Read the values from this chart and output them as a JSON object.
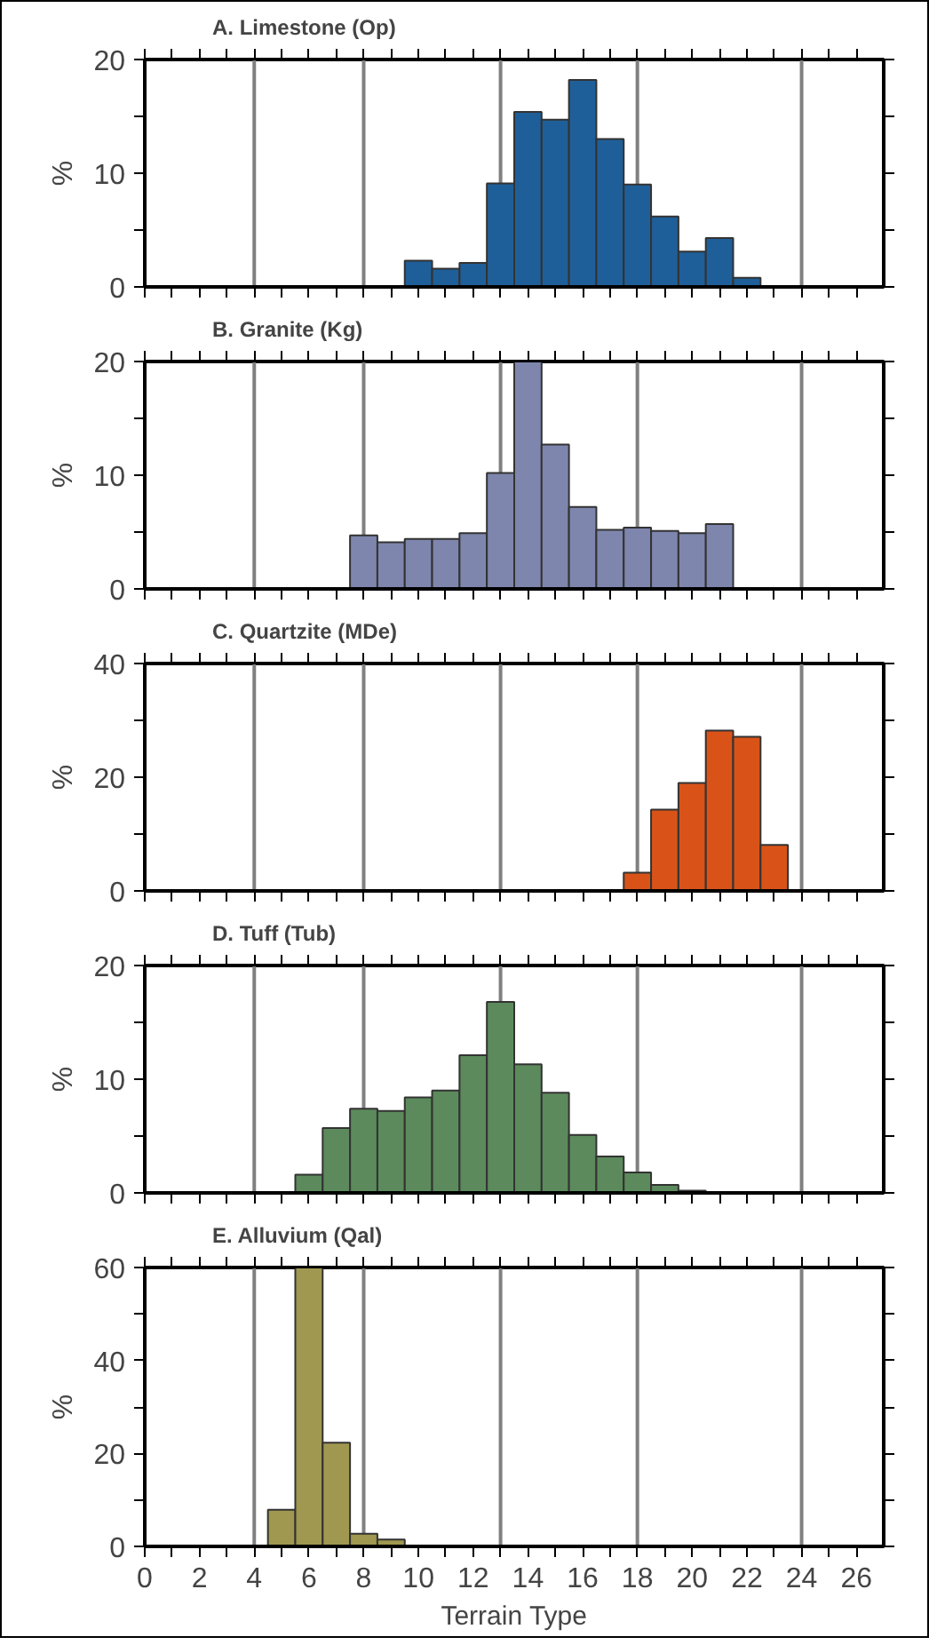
{
  "chart_data": [
    {
      "type": "histogram",
      "title": "A. Limestone (Op)",
      "ylabel": "%",
      "color": "#1f5f99",
      "bins": [
        9.5,
        10.5,
        11.5,
        12.5,
        13.5,
        14.5,
        15.5,
        16.5,
        17.5,
        18.5,
        19.5,
        20.5,
        21.5,
        22.5
      ],
      "values": [
        2.3,
        1.6,
        2.1,
        9.1,
        15.4,
        14.7,
        18.2,
        13.0,
        9.0,
        6.2,
        3.1,
        4.3,
        0.8
      ],
      "xlim": [
        0,
        27
      ],
      "ylim": [
        0,
        20
      ],
      "xticks": [
        0,
        {
          "value": 1,
          "label": null
        },
        2,
        {
          "value": 3,
          "label": null
        },
        4,
        {
          "value": 5,
          "label": null
        },
        6,
        {
          "value": 7,
          "label": null
        },
        8,
        {
          "value": 9,
          "label": null
        },
        10,
        {
          "value": 11,
          "label": null
        },
        12,
        {
          "value": 13,
          "label": null
        },
        14,
        {
          "value": 15,
          "label": null
        },
        16,
        {
          "value": 17,
          "label": null
        },
        18,
        {
          "value": 19,
          "label": null
        },
        20,
        {
          "value": 21,
          "label": null
        },
        22,
        {
          "value": 23,
          "label": null
        },
        24,
        {
          "value": 25,
          "label": null
        },
        26
      ],
      "yticks": [
        0,
        {
          "value": 5,
          "label": null
        },
        10,
        {
          "value": 15,
          "label": null
        },
        20
      ],
      "tick_labels": "y",
      "ref_lines": [
        {
          "axis": "x",
          "value": 4,
          "color": "#808080"
        },
        {
          "axis": "x",
          "value": 8,
          "color": "#808080"
        },
        {
          "axis": "x",
          "value": 13,
          "color": "#808080"
        },
        {
          "axis": "x",
          "value": 18,
          "color": "#808080"
        },
        {
          "axis": "x",
          "value": 24,
          "color": "#808080"
        }
      ]
    },
    {
      "type": "histogram",
      "title": "B. Granite (Kg)",
      "ylabel": "%",
      "color": "#7e86ad",
      "bins": [
        7.5,
        8.5,
        9.5,
        10.5,
        11.5,
        12.5,
        13.5,
        14.5,
        15.5,
        16.5,
        17.5,
        18.5,
        19.5,
        20.5,
        21.5
      ],
      "values": [
        4.7,
        4.1,
        4.4,
        4.4,
        4.9,
        10.2,
        20.0,
        12.7,
        7.2,
        5.2,
        5.4,
        5.1,
        4.9,
        5.7
      ],
      "xlim": [
        0,
        27
      ],
      "ylim": [
        0,
        20
      ],
      "xticks": [
        0,
        {
          "value": 1,
          "label": null
        },
        2,
        {
          "value": 3,
          "label": null
        },
        4,
        {
          "value": 5,
          "label": null
        },
        6,
        {
          "value": 7,
          "label": null
        },
        8,
        {
          "value": 9,
          "label": null
        },
        10,
        {
          "value": 11,
          "label": null
        },
        12,
        {
          "value": 13,
          "label": null
        },
        14,
        {
          "value": 15,
          "label": null
        },
        16,
        {
          "value": 17,
          "label": null
        },
        18,
        {
          "value": 19,
          "label": null
        },
        20,
        {
          "value": 21,
          "label": null
        },
        22,
        {
          "value": 23,
          "label": null
        },
        24,
        {
          "value": 25,
          "label": null
        },
        26
      ],
      "yticks": [
        0,
        {
          "value": 5,
          "label": null
        },
        10,
        {
          "value": 15,
          "label": null
        },
        20
      ],
      "tick_labels": "y",
      "ref_lines": [
        {
          "axis": "x",
          "value": 4,
          "color": "#808080"
        },
        {
          "axis": "x",
          "value": 8,
          "color": "#808080"
        },
        {
          "axis": "x",
          "value": 13,
          "color": "#808080"
        },
        {
          "axis": "x",
          "value": 18,
          "color": "#808080"
        },
        {
          "axis": "x",
          "value": 24,
          "color": "#808080"
        }
      ]
    },
    {
      "type": "histogram",
      "title": "C. Quartzite (MDe)",
      "ylabel": "%",
      "color": "#d95319",
      "bins": [
        17.5,
        18.5,
        19.5,
        20.5,
        21.5,
        22.5,
        23.5
      ],
      "values": [
        3.2,
        14.3,
        19.0,
        28.2,
        27.1,
        8.1
      ],
      "xlim": [
        0,
        27
      ],
      "ylim": [
        0,
        40
      ],
      "xticks": [
        0,
        {
          "value": 1,
          "label": null
        },
        2,
        {
          "value": 3,
          "label": null
        },
        4,
        {
          "value": 5,
          "label": null
        },
        6,
        {
          "value": 7,
          "label": null
        },
        8,
        {
          "value": 9,
          "label": null
        },
        10,
        {
          "value": 11,
          "label": null
        },
        12,
        {
          "value": 13,
          "label": null
        },
        14,
        {
          "value": 15,
          "label": null
        },
        16,
        {
          "value": 17,
          "label": null
        },
        18,
        {
          "value": 19,
          "label": null
        },
        20,
        {
          "value": 21,
          "label": null
        },
        22,
        {
          "value": 23,
          "label": null
        },
        24,
        {
          "value": 25,
          "label": null
        },
        26
      ],
      "yticks": [
        0,
        {
          "value": 10,
          "label": null
        },
        20,
        {
          "value": 30,
          "label": null
        },
        40
      ],
      "tick_labels": "y",
      "ref_lines": [
        {
          "axis": "x",
          "value": 4,
          "color": "#808080"
        },
        {
          "axis": "x",
          "value": 8,
          "color": "#808080"
        },
        {
          "axis": "x",
          "value": 13,
          "color": "#808080"
        },
        {
          "axis": "x",
          "value": 18,
          "color": "#808080"
        },
        {
          "axis": "x",
          "value": 24,
          "color": "#808080"
        }
      ]
    },
    {
      "type": "histogram",
      "title": "D. Tuff (Tub)",
      "ylabel": "%",
      "color": "#5c8a5c",
      "bins": [
        5.5,
        6.5,
        7.5,
        8.5,
        9.5,
        10.5,
        11.5,
        12.5,
        13.5,
        14.5,
        15.5,
        16.5,
        17.5,
        18.5,
        19.5,
        20.5
      ],
      "values": [
        1.6,
        5.7,
        7.4,
        7.2,
        8.4,
        9.0,
        12.1,
        16.8,
        11.3,
        8.8,
        5.1,
        3.2,
        1.8,
        0.7,
        0.2
      ],
      "xlim": [
        0,
        27
      ],
      "ylim": [
        0,
        20
      ],
      "xticks": [
        0,
        {
          "value": 1,
          "label": null
        },
        2,
        {
          "value": 3,
          "label": null
        },
        4,
        {
          "value": 5,
          "label": null
        },
        6,
        {
          "value": 7,
          "label": null
        },
        8,
        {
          "value": 9,
          "label": null
        },
        10,
        {
          "value": 11,
          "label": null
        },
        12,
        {
          "value": 13,
          "label": null
        },
        14,
        {
          "value": 15,
          "label": null
        },
        16,
        {
          "value": 17,
          "label": null
        },
        18,
        {
          "value": 19,
          "label": null
        },
        20,
        {
          "value": 21,
          "label": null
        },
        22,
        {
          "value": 23,
          "label": null
        },
        24,
        {
          "value": 25,
          "label": null
        },
        26
      ],
      "yticks": [
        0,
        {
          "value": 5,
          "label": null
        },
        10,
        {
          "value": 15,
          "label": null
        },
        20
      ],
      "tick_labels": "y",
      "ref_lines": [
        {
          "axis": "x",
          "value": 4,
          "color": "#808080"
        },
        {
          "axis": "x",
          "value": 8,
          "color": "#808080"
        },
        {
          "axis": "x",
          "value": 13,
          "color": "#808080"
        },
        {
          "axis": "x",
          "value": 18,
          "color": "#808080"
        },
        {
          "axis": "x",
          "value": 24,
          "color": "#808080"
        }
      ]
    },
    {
      "type": "histogram",
      "title": "E. Alluvium (Qal)",
      "ylabel": "%",
      "xlabel": "Terrain Type",
      "color": "#a09850",
      "bins": [
        4.5,
        5.5,
        6.5,
        7.5,
        8.5,
        9.5
      ],
      "values": [
        7.9,
        60,
        22.3,
        2.7,
        1.5
      ],
      "xlim": [
        0,
        27
      ],
      "ylim": [
        0,
        60
      ],
      "xticks": [
        0,
        {
          "value": 1,
          "label": null
        },
        2,
        {
          "value": 3,
          "label": null
        },
        4,
        {
          "value": 5,
          "label": null
        },
        6,
        {
          "value": 7,
          "label": null
        },
        8,
        {
          "value": 9,
          "label": null
        },
        10,
        {
          "value": 11,
          "label": null
        },
        12,
        {
          "value": 13,
          "label": null
        },
        14,
        {
          "value": 15,
          "label": null
        },
        16,
        {
          "value": 17,
          "label": null
        },
        18,
        {
          "value": 19,
          "label": null
        },
        20,
        {
          "value": 21,
          "label": null
        },
        22,
        {
          "value": 23,
          "label": null
        },
        24,
        {
          "value": 25,
          "label": null
        },
        26
      ],
      "yticks": [
        0,
        {
          "value": 10,
          "label": null
        },
        20,
        {
          "value": 30,
          "label": null
        },
        40,
        {
          "value": 50,
          "label": null
        },
        60
      ],
      "ref_lines": [
        {
          "axis": "x",
          "value": 4,
          "color": "#808080"
        },
        {
          "axis": "x",
          "value": 8,
          "color": "#808080"
        },
        {
          "axis": "x",
          "value": 13,
          "color": "#808080"
        },
        {
          "axis": "x",
          "value": 18,
          "color": "#808080"
        },
        {
          "axis": "x",
          "value": 24,
          "color": "#808080"
        }
      ]
    }
  ]
}
